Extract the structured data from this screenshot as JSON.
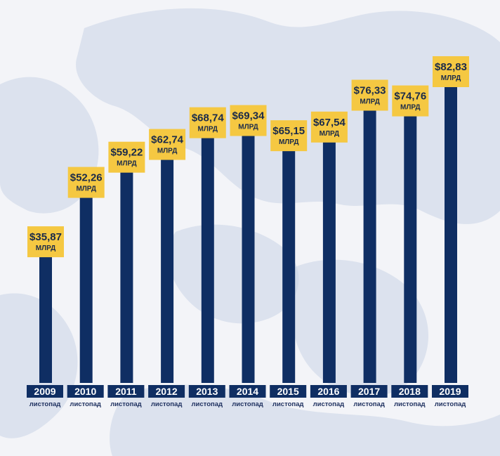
{
  "colors": {
    "bar": "#0f2e63",
    "label_box": "#f5c842",
    "year_band": "#0f2e63",
    "background": "#f3f4f8",
    "map": "#c9d3e6"
  },
  "chart_data": {
    "type": "bar",
    "title": "",
    "xlabel": "",
    "ylabel": "",
    "ylim": [
      0,
      85
    ],
    "grid": false,
    "categories": [
      "2009",
      "2010",
      "2011",
      "2012",
      "2013",
      "2014",
      "2015",
      "2016",
      "2017",
      "2018",
      "2019"
    ],
    "category_sublabel": "листопад",
    "values": [
      35.87,
      52.26,
      59.22,
      62.74,
      68.74,
      69.34,
      65.15,
      67.54,
      76.33,
      74.76,
      82.83
    ],
    "value_labels": [
      "$35,87",
      "$52,26",
      "$59,22",
      "$62,74",
      "$68,74",
      "$69,34",
      "$65,15",
      "$67,54",
      "$76,33",
      "$74,76",
      "$82,83"
    ],
    "value_unit": "МЛРД"
  }
}
